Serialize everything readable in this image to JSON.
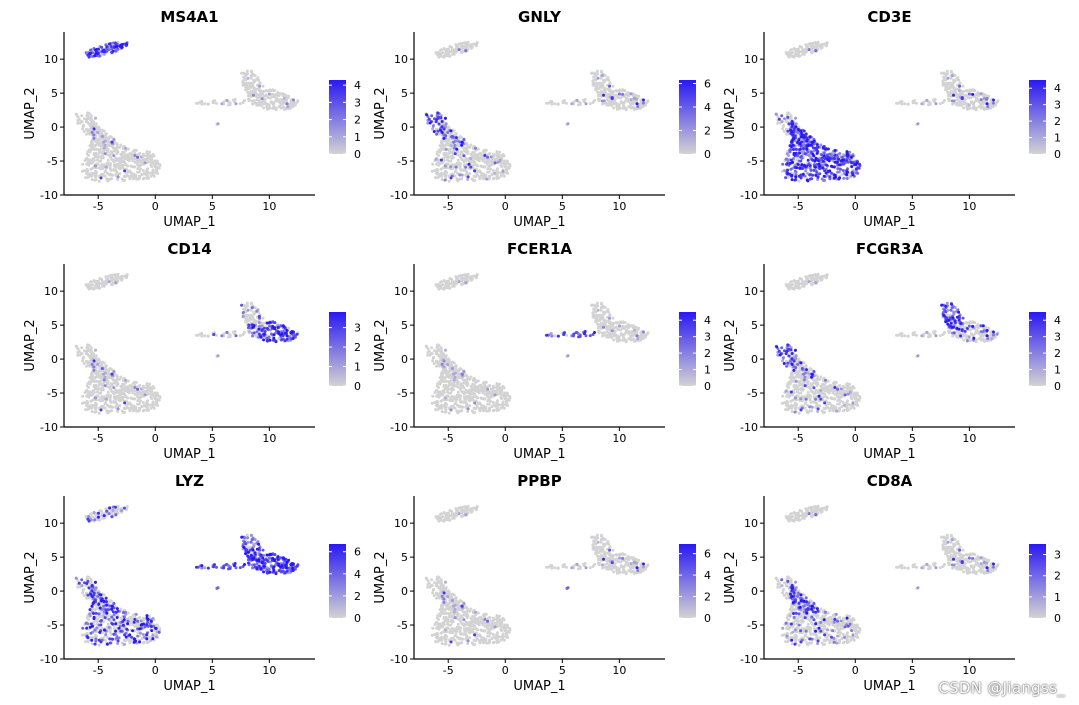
{
  "figure": {
    "watermark": "CSDN @Jiangss_",
    "colors": {
      "low": "#d3d3d3",
      "high": "#2a19f2",
      "axis": "#000000"
    }
  },
  "chart_data": [
    {
      "type": "scatter",
      "title": "MS4A1",
      "xlabel": "UMAP_1",
      "ylabel": "UMAP_2",
      "xlim": [
        -8,
        14
      ],
      "ylim": [
        -10,
        14
      ],
      "xticks": [
        "-5",
        "0",
        "5",
        "10"
      ],
      "yticks": [
        "-10",
        "-5",
        "0",
        "5",
        "10"
      ],
      "legend_ticks": [
        "4",
        "3",
        "2",
        "1",
        "0"
      ],
      "legend_max": 4.3,
      "expression": {
        "B": 0.8,
        "NK": 0.01,
        "T": 0.02,
        "CD8": 0.01,
        "MonoA": 0.0,
        "MonoB": 0.0,
        "DC": 0.0,
        "Plt": 0.0
      }
    },
    {
      "type": "scatter",
      "title": "GNLY",
      "xlabel": "UMAP_1",
      "ylabel": "UMAP_2",
      "xlim": [
        -8,
        14
      ],
      "ylim": [
        -10,
        14
      ],
      "xticks": [
        "-5",
        "0",
        "5",
        "10"
      ],
      "yticks": [
        "-10",
        "-5",
        "0",
        "5",
        "10"
      ],
      "legend_ticks": [
        "6",
        "4",
        "2",
        "0"
      ],
      "legend_max": 6.3,
      "expression": {
        "B": 0.02,
        "NK": 0.85,
        "T": 0.06,
        "CD8": 0.2,
        "MonoA": 0.04,
        "MonoB": 0.04,
        "DC": 0.0,
        "Plt": 0.0
      }
    },
    {
      "type": "scatter",
      "title": "CD3E",
      "xlabel": "UMAP_1",
      "ylabel": "UMAP_2",
      "xlim": [
        -8,
        14
      ],
      "ylim": [
        -10,
        14
      ],
      "xticks": [
        "-5",
        "0",
        "5",
        "10"
      ],
      "yticks": [
        "-10",
        "-5",
        "0",
        "5",
        "10"
      ],
      "legend_ticks": [
        "4",
        "3",
        "2",
        "1",
        "0"
      ],
      "legend_max": 4.5,
      "expression": {
        "B": 0.02,
        "NK": 0.25,
        "T": 0.75,
        "CD8": 0.75,
        "MonoA": 0.05,
        "MonoB": 0.05,
        "DC": 0.0,
        "Plt": 0.0
      }
    },
    {
      "type": "scatter",
      "title": "CD14",
      "xlabel": "UMAP_1",
      "ylabel": "UMAP_2",
      "xlim": [
        -8,
        14
      ],
      "ylim": [
        -10,
        14
      ],
      "xticks": [
        "-5",
        "0",
        "5",
        "10"
      ],
      "yticks": [
        "-10",
        "-5",
        "0",
        "5",
        "10"
      ],
      "legend_ticks": [
        "3",
        "2",
        "1",
        "0"
      ],
      "legend_max": 3.8,
      "expression": {
        "B": 0.0,
        "NK": 0.0,
        "T": 0.02,
        "CD8": 0.02,
        "MonoA": 0.15,
        "MonoB": 0.7,
        "DC": 0.05,
        "Plt": 0.0
      }
    },
    {
      "type": "scatter",
      "title": "FCER1A",
      "xlabel": "UMAP_1",
      "ylabel": "UMAP_2",
      "xlim": [
        -8,
        14
      ],
      "ylim": [
        -10,
        14
      ],
      "xticks": [
        "-5",
        "0",
        "5",
        "10"
      ],
      "yticks": [
        "-10",
        "-5",
        "0",
        "5",
        "10"
      ],
      "legend_ticks": [
        "4",
        "3",
        "2",
        "1",
        "0"
      ],
      "legend_max": 4.5,
      "expression": {
        "B": 0.0,
        "NK": 0.0,
        "T": 0.0,
        "CD8": 0.0,
        "MonoA": 0.0,
        "MonoB": 0.0,
        "DC": 0.8,
        "Plt": 0.0
      }
    },
    {
      "type": "scatter",
      "title": "FCGR3A",
      "xlabel": "UMAP_1",
      "ylabel": "UMAP_2",
      "xlim": [
        -8,
        14
      ],
      "ylim": [
        -10,
        14
      ],
      "xticks": [
        "-5",
        "0",
        "5",
        "10"
      ],
      "yticks": [
        "-10",
        "-5",
        "0",
        "5",
        "10"
      ],
      "legend_ticks": [
        "4",
        "3",
        "2",
        "1",
        "0"
      ],
      "legend_max": 4.5,
      "expression": {
        "B": 0.0,
        "NK": 0.85,
        "T": 0.06,
        "CD8": 0.15,
        "MonoA": 0.85,
        "MonoB": 0.15,
        "DC": 0.0,
        "Plt": 0.0
      }
    },
    {
      "type": "scatter",
      "title": "LYZ",
      "xlabel": "UMAP_1",
      "ylabel": "UMAP_2",
      "xlim": [
        -8,
        14
      ],
      "ylim": [
        -10,
        14
      ],
      "xticks": [
        "-5",
        "0",
        "5",
        "10"
      ],
      "yticks": [
        "-10",
        "-5",
        "0",
        "5",
        "10"
      ],
      "legend_ticks": [
        "6",
        "4",
        "2",
        "0"
      ],
      "legend_max": 6.7,
      "expression": {
        "B": 0.2,
        "NK": 0.3,
        "T": 0.3,
        "CD8": 0.3,
        "MonoA": 0.72,
        "MonoB": 0.95,
        "DC": 0.95,
        "Plt": 0.5
      }
    },
    {
      "type": "scatter",
      "title": "PPBP",
      "xlabel": "UMAP_1",
      "ylabel": "UMAP_2",
      "xlim": [
        -8,
        14
      ],
      "ylim": [
        -10,
        14
      ],
      "xticks": [
        "-5",
        "0",
        "5",
        "10"
      ],
      "yticks": [
        "-10",
        "-5",
        "0",
        "5",
        "10"
      ],
      "legend_ticks": [
        "6",
        "4",
        "2",
        "0"
      ],
      "legend_max": 6.9,
      "expression": {
        "B": 0.0,
        "NK": 0.01,
        "T": 0.01,
        "CD8": 0.01,
        "MonoA": 0.02,
        "MonoB": 0.02,
        "DC": 0.0,
        "Plt": 0.9
      }
    },
    {
      "type": "scatter",
      "title": "CD8A",
      "xlabel": "UMAP_1",
      "ylabel": "UMAP_2",
      "xlim": [
        -8,
        14
      ],
      "ylim": [
        -10,
        14
      ],
      "xticks": [
        "-5",
        "0",
        "5",
        "10"
      ],
      "yticks": [
        "-10",
        "-5",
        "0",
        "5",
        "10"
      ],
      "legend_ticks": [
        "3",
        "2",
        "1",
        "0"
      ],
      "legend_max": 3.5,
      "expression": {
        "B": 0.02,
        "NK": 0.15,
        "T": 0.12,
        "CD8": 0.7,
        "MonoA": 0.04,
        "MonoB": 0.04,
        "DC": 0.0,
        "Plt": 0.0
      }
    }
  ]
}
